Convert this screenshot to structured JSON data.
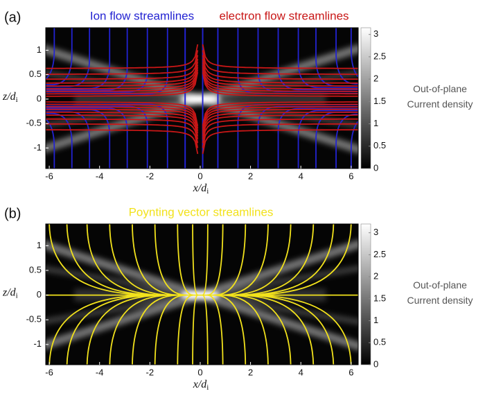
{
  "chart_data": [
    {
      "type": "heatmap",
      "panel_label": "(a)",
      "streamlines": [
        {
          "name": "Ion flow streamlines",
          "color": "#2323d2"
        },
        {
          "name": "electron flow streamlines",
          "color": "#c81717"
        }
      ],
      "xlabel": {
        "main": "x/d",
        "sub": "i"
      },
      "ylabel": {
        "main": "z/d",
        "sub": "i"
      },
      "xlim": [
        -6.14,
        6.28
      ],
      "xticks": [
        -6,
        -4,
        -2,
        0,
        2,
        4,
        6
      ],
      "ylim": [
        -1.42,
        1.46
      ],
      "yticks": [
        -1,
        -0.5,
        0,
        0.5,
        1
      ],
      "colorbar": {
        "label": [
          "Out-of-plane",
          "Current density"
        ],
        "lim": [
          0,
          3.15
        ],
        "ticks": [
          0,
          0.5,
          1,
          1.5,
          2,
          2.5,
          3
        ],
        "colormap": [
          "#000000",
          "#ffffff"
        ]
      }
    },
    {
      "type": "heatmap",
      "panel_label": "(b)",
      "streamlines": [
        {
          "name": "Poynting vector streamlines",
          "color": "#f2e21c"
        }
      ],
      "xlabel": {
        "main": "x/d",
        "sub": "i"
      },
      "ylabel": {
        "main": "z/d",
        "sub": "i"
      },
      "xlim": [
        -6.14,
        6.28
      ],
      "xticks": [
        -6,
        -4,
        -2,
        0,
        2,
        4,
        6
      ],
      "ylim": [
        -1.41,
        1.44
      ],
      "yticks": [
        -1,
        -0.5,
        0,
        0.5,
        1
      ],
      "colorbar": {
        "label": [
          "Out-of-plane",
          "Current density"
        ],
        "lim": [
          0,
          3.2
        ],
        "ticks": [
          0,
          0.5,
          1,
          1.5,
          2,
          2.5,
          3
        ],
        "colormap": [
          "#000000",
          "#ffffff"
        ]
      }
    }
  ]
}
